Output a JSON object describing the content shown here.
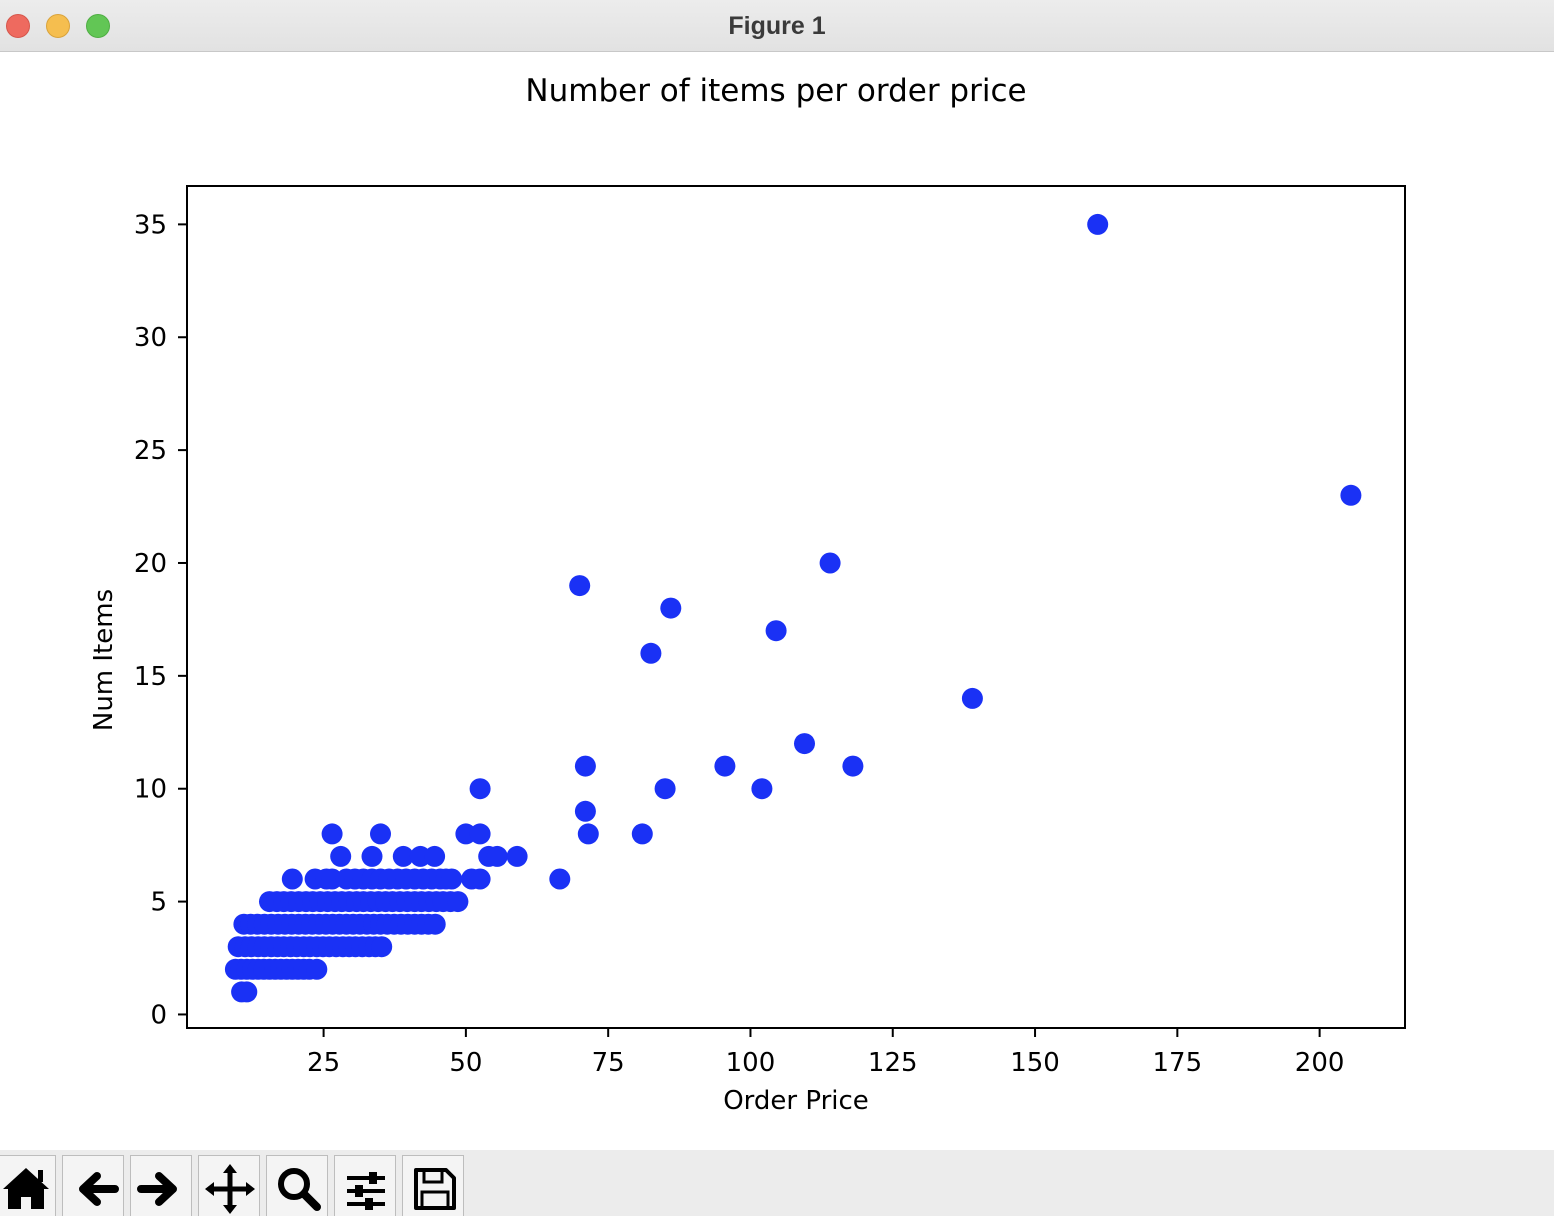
{
  "window": {
    "title": "Figure 1",
    "controls": {
      "close_color": "#ee6a5f",
      "minimize_color": "#f5be4f",
      "maximize_color": "#62c655"
    }
  },
  "toolbar": {
    "buttons": [
      {
        "icon": "home-icon"
      },
      {
        "icon": "back-arrow-icon"
      },
      {
        "icon": "forward-arrow-icon"
      },
      {
        "icon": "pan-move-icon"
      },
      {
        "icon": "zoom-magnifier-icon"
      },
      {
        "icon": "configure-subplots-icon"
      },
      {
        "icon": "save-floppy-icon"
      }
    ]
  },
  "chart_data": {
    "type": "scatter",
    "title": "Number of items per order price",
    "xlabel": "Order Price",
    "ylabel": "Num Items",
    "xlim": [
      1,
      215
    ],
    "ylim": [
      -0.6,
      36.7
    ],
    "xticks": [
      25,
      50,
      75,
      100,
      125,
      150,
      175,
      200
    ],
    "yticks": [
      0,
      5,
      10,
      15,
      20,
      25,
      30,
      35
    ],
    "grid": false,
    "marker_color": "#1a31f5",
    "series": [
      {
        "points": [
          [
            10.6,
            1
          ],
          [
            11.5,
            1
          ],
          [
            9.5,
            2
          ],
          [
            10.5,
            2
          ],
          [
            11.5,
            2
          ],
          [
            12.5,
            2
          ],
          [
            13.5,
            2
          ],
          [
            14.5,
            2
          ],
          [
            15.5,
            2
          ],
          [
            16.5,
            2
          ],
          [
            17.5,
            2
          ],
          [
            18.5,
            2
          ],
          [
            19.5,
            2
          ],
          [
            20.5,
            2
          ],
          [
            21.5,
            2
          ],
          [
            22.5,
            2
          ],
          [
            23.8,
            2
          ],
          [
            10.0,
            3
          ],
          [
            11.2,
            3
          ],
          [
            12.3,
            3
          ],
          [
            13.5,
            3
          ],
          [
            14.6,
            3
          ],
          [
            15.8,
            3
          ],
          [
            16.9,
            3
          ],
          [
            18.0,
            3
          ],
          [
            19.2,
            3
          ],
          [
            20.3,
            3
          ],
          [
            21.5,
            3
          ],
          [
            22.6,
            3
          ],
          [
            23.8,
            3
          ],
          [
            24.9,
            3
          ],
          [
            26.0,
            3
          ],
          [
            27.2,
            3
          ],
          [
            28.4,
            3
          ],
          [
            29.5,
            3
          ],
          [
            30.6,
            3
          ],
          [
            31.8,
            3
          ],
          [
            33.0,
            3
          ],
          [
            34.1,
            3
          ],
          [
            35.2,
            3
          ],
          [
            11.0,
            4
          ],
          [
            12.2,
            4
          ],
          [
            13.4,
            4
          ],
          [
            14.6,
            4
          ],
          [
            15.8,
            4
          ],
          [
            17.0,
            4
          ],
          [
            18.2,
            4
          ],
          [
            19.4,
            4
          ],
          [
            20.6,
            4
          ],
          [
            21.8,
            4
          ],
          [
            23.0,
            4
          ],
          [
            24.2,
            4
          ],
          [
            25.4,
            4
          ],
          [
            26.6,
            4
          ],
          [
            27.8,
            4
          ],
          [
            29.0,
            4
          ],
          [
            30.2,
            4
          ],
          [
            31.4,
            4
          ],
          [
            32.6,
            4
          ],
          [
            33.8,
            4
          ],
          [
            35.0,
            4
          ],
          [
            36.2,
            4
          ],
          [
            37.4,
            4
          ],
          [
            38.6,
            4
          ],
          [
            39.8,
            4
          ],
          [
            41.0,
            4
          ],
          [
            42.2,
            4
          ],
          [
            43.4,
            4
          ],
          [
            44.6,
            4
          ],
          [
            15.5,
            5
          ],
          [
            16.8,
            5
          ],
          [
            18.0,
            5
          ],
          [
            19.3,
            5
          ],
          [
            20.6,
            5
          ],
          [
            21.9,
            5
          ],
          [
            23.1,
            5
          ],
          [
            24.4,
            5
          ],
          [
            25.7,
            5
          ],
          [
            27.0,
            5
          ],
          [
            28.2,
            5
          ],
          [
            29.5,
            5
          ],
          [
            30.8,
            5
          ],
          [
            32.0,
            5
          ],
          [
            33.3,
            5
          ],
          [
            34.6,
            5
          ],
          [
            35.9,
            5
          ],
          [
            37.1,
            5
          ],
          [
            38.4,
            5
          ],
          [
            39.7,
            5
          ],
          [
            41.0,
            5
          ],
          [
            42.2,
            5
          ],
          [
            43.5,
            5
          ],
          [
            44.8,
            5
          ],
          [
            46.0,
            5
          ],
          [
            47.3,
            5
          ],
          [
            48.6,
            5
          ],
          [
            19.5,
            6
          ],
          [
            23.5,
            6
          ],
          [
            25.5,
            6
          ],
          [
            26.5,
            6
          ],
          [
            29.0,
            6
          ],
          [
            30.5,
            6
          ],
          [
            32.0,
            6
          ],
          [
            33.5,
            6
          ],
          [
            35.0,
            6
          ],
          [
            36.5,
            6
          ],
          [
            38.0,
            6
          ],
          [
            39.5,
            6
          ],
          [
            41.0,
            6
          ],
          [
            42.5,
            6
          ],
          [
            44.0,
            6
          ],
          [
            45.5,
            6
          ],
          [
            46.5,
            6
          ],
          [
            47.5,
            6
          ],
          [
            51.0,
            6
          ],
          [
            52.5,
            6
          ],
          [
            66.5,
            6
          ],
          [
            28.0,
            7
          ],
          [
            33.5,
            7
          ],
          [
            39.0,
            7
          ],
          [
            42.0,
            7
          ],
          [
            44.5,
            7
          ],
          [
            54.0,
            7
          ],
          [
            55.5,
            7
          ],
          [
            59.0,
            7
          ],
          [
            26.5,
            8
          ],
          [
            35.0,
            8
          ],
          [
            50.0,
            8
          ],
          [
            52.5,
            8
          ],
          [
            71.5,
            8
          ],
          [
            81.0,
            8
          ],
          [
            71.0,
            9
          ],
          [
            52.5,
            10
          ],
          [
            85.0,
            10
          ],
          [
            102.0,
            10
          ],
          [
            71.0,
            11
          ],
          [
            95.5,
            11
          ],
          [
            118.0,
            11
          ],
          [
            109.5,
            12
          ],
          [
            139.0,
            14
          ],
          [
            82.5,
            16
          ],
          [
            104.5,
            17
          ],
          [
            86.0,
            18
          ],
          [
            70.0,
            19
          ],
          [
            114.0,
            20
          ],
          [
            205.5,
            23
          ],
          [
            161.0,
            35
          ]
        ]
      }
    ]
  }
}
